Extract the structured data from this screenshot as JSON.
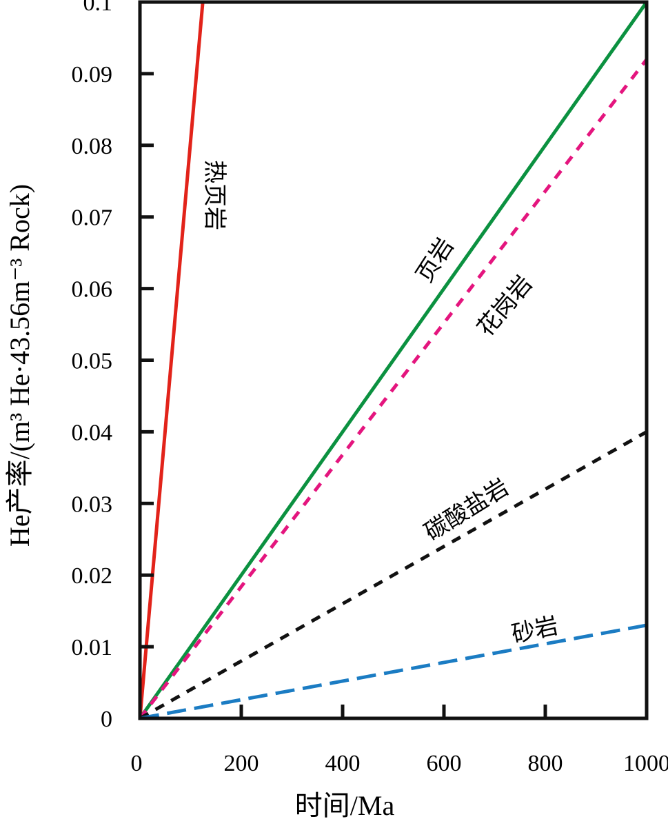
{
  "chart_data": {
    "type": "line",
    "title": "",
    "xlabel": "时间/Ma",
    "ylabel": "He产率/(m³ He·43.56m⁻³ Rock)",
    "xlim": [
      0,
      1000
    ],
    "ylim": [
      0,
      0.1
    ],
    "xticks": [
      "0",
      "200",
      "400",
      "600",
      "800",
      "1000"
    ],
    "xtick_values": [
      0,
      200,
      400,
      600,
      800,
      1000
    ],
    "yticks": [
      "0",
      "0.01",
      "0.02",
      "0.03",
      "0.04",
      "0.05",
      "0.06",
      "0.07",
      "0.08",
      "0.09",
      "0.1"
    ],
    "ytick_values": [
      0,
      0.01,
      0.02,
      0.03,
      0.04,
      0.05,
      0.06,
      0.07,
      0.08,
      0.09,
      0.1
    ],
    "grid": false,
    "series": [
      {
        "name": "热页岩",
        "x": [
          0,
          124
        ],
        "y": [
          0,
          0.1
        ],
        "color": "#e2231a",
        "dash": "solid"
      },
      {
        "name": "页岩",
        "x": [
          0,
          1000
        ],
        "y": [
          0,
          0.1
        ],
        "color": "#0b9140",
        "dash": "solid"
      },
      {
        "name": "花岗岩",
        "x": [
          0,
          1000
        ],
        "y": [
          0,
          0.092
        ],
        "color": "#e4157e",
        "dash": "short"
      },
      {
        "name": "碳酸盐岩",
        "x": [
          0,
          1000
        ],
        "y": [
          0,
          0.04
        ],
        "color": "#111111",
        "dash": "short"
      },
      {
        "name": "砂岩",
        "x": [
          0,
          1000
        ],
        "y": [
          0,
          0.013
        ],
        "color": "#1b7cc3",
        "dash": "long"
      }
    ]
  }
}
